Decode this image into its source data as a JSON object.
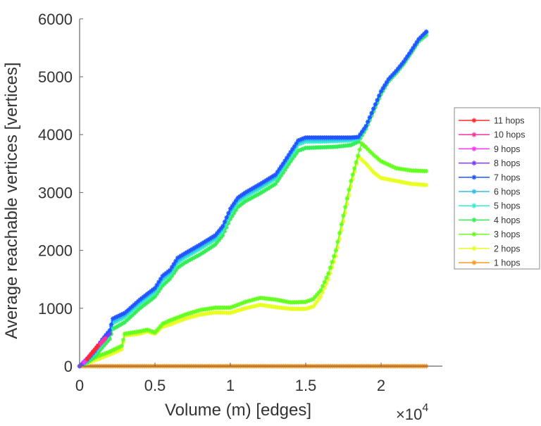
{
  "chart_data": {
    "type": "line",
    "title": "",
    "xlabel": "Volume (m) [edges]",
    "ylabel": "Average reachable vertices [vertices]",
    "x_multiplier_label": "×10",
    "x_multiplier_exp": "4",
    "xlim": [
      0,
      24000
    ],
    "ylim": [
      0,
      6000
    ],
    "xticks": [
      0,
      5000,
      10000,
      15000,
      20000
    ],
    "xtick_labels": [
      "0",
      "0.5",
      "1",
      "1.5",
      "2"
    ],
    "yticks": [
      0,
      1000,
      2000,
      3000,
      4000,
      5000,
      6000
    ],
    "ytick_labels": [
      "0",
      "1000",
      "2000",
      "3000",
      "4000",
      "5000",
      "6000"
    ],
    "grid": false,
    "legend_position": "right",
    "series": [
      {
        "name": "11 hops",
        "color": "#ff2a2a",
        "x": [
          500,
          900,
          1200
        ],
        "y": [
          120,
          250,
          350
        ]
      },
      {
        "name": "10 hops",
        "color": "#ff3399",
        "x": [
          500,
          1000,
          1500,
          1700
        ],
        "y": [
          120,
          280,
          420,
          480
        ]
      },
      {
        "name": "9 hops",
        "color": "#ff33ff",
        "x": [
          300,
          800,
          1200,
          1700
        ],
        "y": [
          60,
          220,
          330,
          470
        ]
      },
      {
        "name": "8 hops",
        "color": "#7a3cff",
        "x": [
          0,
          500,
          1000,
          1500,
          2000
        ],
        "y": [
          0,
          130,
          280,
          440,
          560
        ]
      },
      {
        "name": "7 hops",
        "color": "#2255ff",
        "x": [
          0,
          500,
          1000,
          1500,
          2000,
          2200,
          3000,
          4000,
          5000,
          5500,
          6000,
          6500,
          7000,
          8000,
          9000,
          9500,
          10000,
          10500,
          11000,
          12000,
          13000,
          13500,
          14000,
          14500,
          15000,
          16000,
          17000,
          18000,
          18500,
          19000,
          19500,
          20000,
          20500,
          21000,
          21500,
          22000,
          22500,
          23000
        ],
        "y": [
          0,
          110,
          260,
          460,
          620,
          820,
          920,
          1150,
          1350,
          1560,
          1660,
          1870,
          1950,
          2100,
          2260,
          2420,
          2720,
          2910,
          3000,
          3150,
          3310,
          3500,
          3700,
          3900,
          3950,
          3950,
          3950,
          3950,
          3960,
          4150,
          4450,
          4750,
          4960,
          5100,
          5260,
          5450,
          5650,
          5780
        ]
      },
      {
        "name": "6 hops",
        "color": "#33bbee",
        "x": [
          0,
          500,
          1000,
          1500,
          2000,
          2200,
          3000,
          4000,
          5000,
          5500,
          6000,
          6500,
          7000,
          8000,
          9000,
          9500,
          10000,
          10500,
          11000,
          12000,
          13000,
          13500,
          14000,
          14500,
          15000,
          16000,
          17000,
          18000,
          18500,
          19000,
          19500,
          20000,
          20500,
          21000,
          21500,
          22000,
          22500,
          23000
        ],
        "y": [
          0,
          100,
          240,
          430,
          590,
          780,
          890,
          1120,
          1320,
          1520,
          1630,
          1830,
          1920,
          2070,
          2230,
          2390,
          2680,
          2880,
          2970,
          3120,
          3280,
          3470,
          3670,
          3870,
          3920,
          3920,
          3920,
          3930,
          3950,
          4140,
          4440,
          4740,
          4950,
          5090,
          5250,
          5440,
          5640,
          5770
        ]
      },
      {
        "name": "5 hops",
        "color": "#33eecc",
        "x": [
          0,
          500,
          1000,
          1500,
          2000,
          2200,
          3000,
          4000,
          5000,
          5500,
          6000,
          6500,
          7000,
          8000,
          9000,
          9500,
          10000,
          10500,
          11000,
          12000,
          13000,
          13500,
          14000,
          14500,
          15000,
          16000,
          17000,
          18000,
          18500,
          19000,
          19500,
          20000,
          20500,
          21000,
          21500,
          22000,
          22500,
          23000
        ],
        "y": [
          0,
          90,
          220,
          400,
          550,
          740,
          850,
          1080,
          1280,
          1480,
          1590,
          1790,
          1880,
          2030,
          2190,
          2350,
          2640,
          2840,
          2930,
          3080,
          3240,
          3430,
          3630,
          3830,
          3880,
          3880,
          3890,
          3900,
          3930,
          4130,
          4430,
          4730,
          4940,
          5080,
          5240,
          5430,
          5630,
          5760
        ]
      },
      {
        "name": "4 hops",
        "color": "#33ee55",
        "x": [
          0,
          500,
          1000,
          1500,
          2000,
          2200,
          3000,
          4000,
          5000,
          5500,
          6000,
          6500,
          7000,
          8000,
          9000,
          9500,
          10000,
          10500,
          11000,
          12000,
          13000,
          13500,
          14000,
          14500,
          15000,
          16000,
          17000,
          18000,
          18500,
          19000,
          19500,
          20000,
          20500,
          21000,
          21500,
          22000,
          22500,
          23000
        ],
        "y": [
          0,
          60,
          160,
          320,
          470,
          640,
          760,
          1000,
          1200,
          1390,
          1510,
          1700,
          1790,
          1930,
          2100,
          2260,
          2540,
          2750,
          2850,
          2990,
          3150,
          3340,
          3540,
          3720,
          3770,
          3780,
          3790,
          3820,
          3880,
          4100,
          4400,
          4700,
          4920,
          5060,
          5220,
          5410,
          5610,
          5720
        ]
      },
      {
        "name": "3 hops",
        "color": "#66ff22",
        "x": [
          0,
          1000,
          2000,
          2800,
          3000,
          4000,
          4500,
          5000,
          5500,
          6000,
          7000,
          8000,
          9000,
          10000,
          11000,
          12000,
          13000,
          14000,
          15000,
          15500,
          16000,
          16500,
          17000,
          17500,
          18000,
          18700,
          19000,
          19500,
          20000,
          21000,
          22000,
          23000
        ],
        "y": [
          0,
          150,
          250,
          350,
          560,
          600,
          630,
          580,
          730,
          790,
          890,
          970,
          1010,
          1010,
          1110,
          1180,
          1150,
          1100,
          1110,
          1160,
          1310,
          1600,
          2000,
          2600,
          3200,
          3850,
          3780,
          3650,
          3540,
          3420,
          3380,
          3370
        ]
      },
      {
        "name": "2 hops",
        "color": "#e8ff22",
        "x": [
          0,
          1000,
          2000,
          2800,
          3000,
          4000,
          4500,
          5000,
          5500,
          6000,
          7000,
          8000,
          9000,
          10000,
          11000,
          12000,
          13000,
          14000,
          15000,
          15500,
          16000,
          16500,
          17000,
          17500,
          18000,
          18500,
          19000,
          19500,
          20000,
          21000,
          22000,
          23000
        ],
        "y": [
          0,
          100,
          200,
          290,
          530,
          560,
          600,
          560,
          680,
          720,
          820,
          890,
          930,
          920,
          1000,
          1060,
          1020,
          990,
          990,
          1030,
          1200,
          1500,
          1900,
          2500,
          3100,
          3620,
          3500,
          3350,
          3250,
          3200,
          3150,
          3130
        ]
      },
      {
        "name": "1 hops",
        "color": "#ff9922",
        "x": [
          0,
          23000
        ],
        "y": [
          0,
          0
        ]
      }
    ]
  }
}
